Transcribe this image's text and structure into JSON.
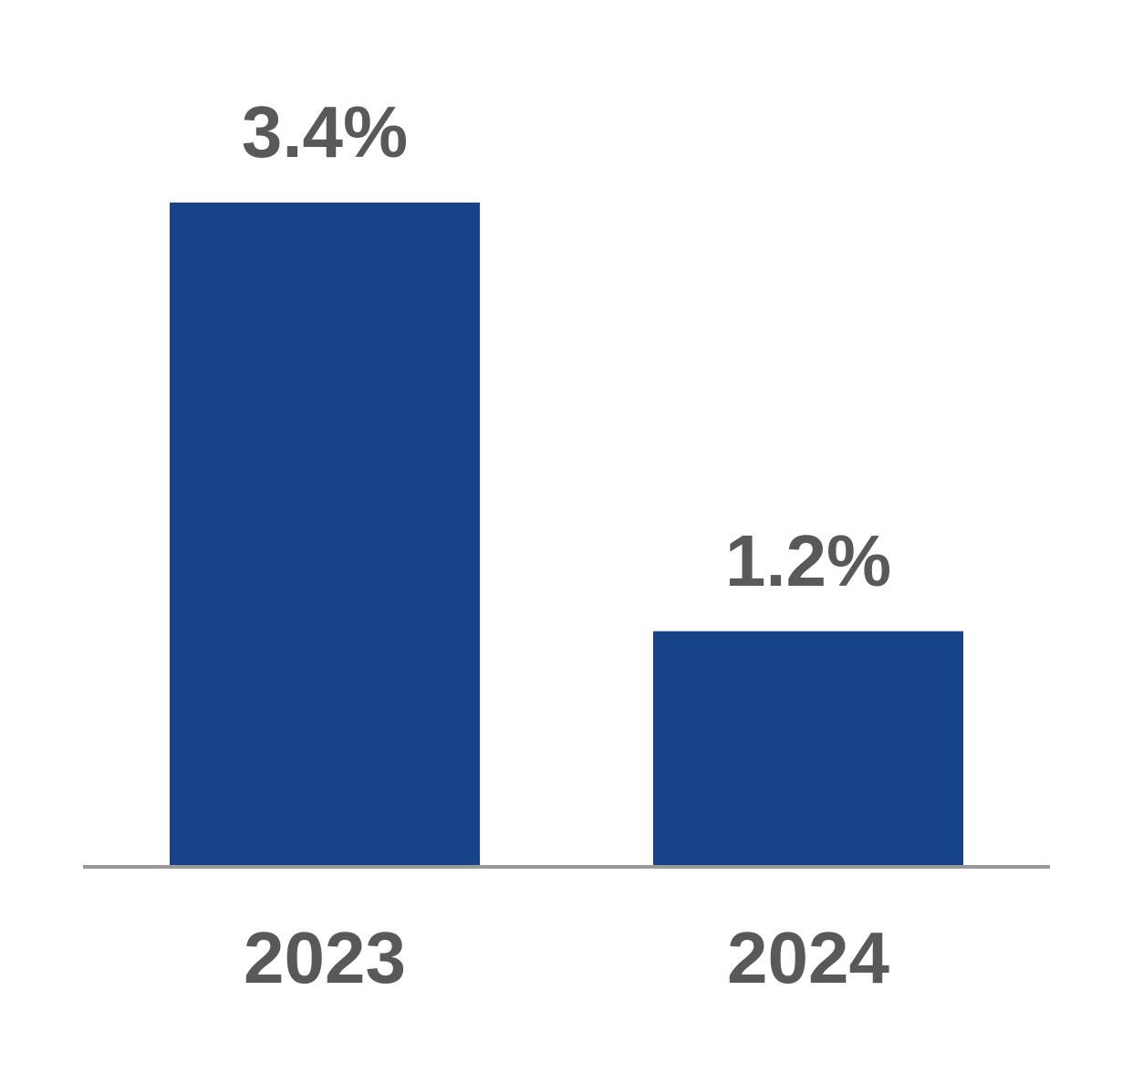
{
  "chart_data": {
    "type": "bar",
    "categories": [
      "2023",
      "2024"
    ],
    "values": [
      3.4,
      1.2
    ],
    "value_labels": [
      "3.4%",
      "1.2%"
    ],
    "color": "#174489"
  }
}
